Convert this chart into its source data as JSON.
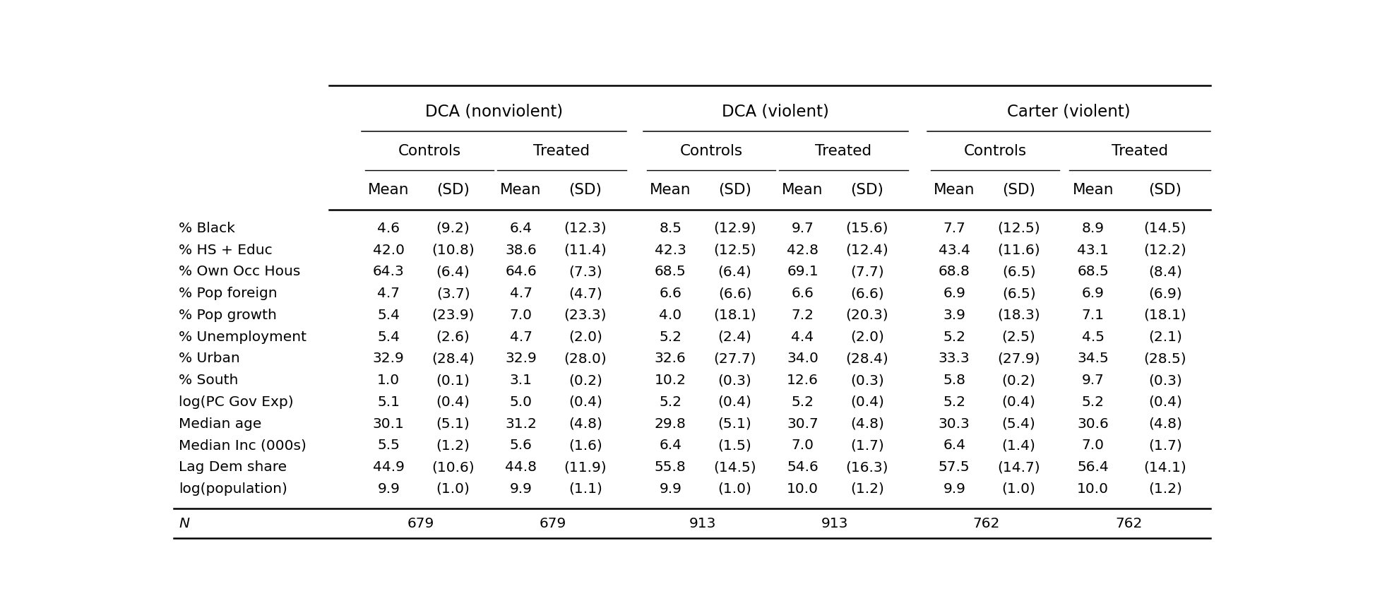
{
  "row_labels": [
    "% Black",
    "% HS + Educ",
    "% Own Occ Hous",
    "% Pop foreign",
    "% Pop growth",
    "% Unemployment",
    "% Urban",
    "% South",
    "log(PC Gov Exp)",
    "Median age",
    "Median Inc (000s)",
    "Lag Dem share",
    "log(population)"
  ],
  "data": [
    [
      "4.6",
      "(9.2)",
      "6.4",
      "(12.3)",
      "8.5",
      "(12.9)",
      "9.7",
      "(15.6)",
      "7.7",
      "(12.5)",
      "8.9",
      "(14.5)"
    ],
    [
      "42.0",
      "(10.8)",
      "38.6",
      "(11.4)",
      "42.3",
      "(12.5)",
      "42.8",
      "(12.4)",
      "43.4",
      "(11.6)",
      "43.1",
      "(12.2)"
    ],
    [
      "64.3",
      "(6.4)",
      "64.6",
      "(7.3)",
      "68.5",
      "(6.4)",
      "69.1",
      "(7.7)",
      "68.8",
      "(6.5)",
      "68.5",
      "(8.4)"
    ],
    [
      "4.7",
      "(3.7)",
      "4.7",
      "(4.7)",
      "6.6",
      "(6.6)",
      "6.6",
      "(6.6)",
      "6.9",
      "(6.5)",
      "6.9",
      "(6.9)"
    ],
    [
      "5.4",
      "(23.9)",
      "7.0",
      "(23.3)",
      "4.0",
      "(18.1)",
      "7.2",
      "(20.3)",
      "3.9",
      "(18.3)",
      "7.1",
      "(18.1)"
    ],
    [
      "5.4",
      "(2.6)",
      "4.7",
      "(2.0)",
      "5.2",
      "(2.4)",
      "4.4",
      "(2.0)",
      "5.2",
      "(2.5)",
      "4.5",
      "(2.1)"
    ],
    [
      "32.9",
      "(28.4)",
      "32.9",
      "(28.0)",
      "32.6",
      "(27.7)",
      "34.0",
      "(28.4)",
      "33.3",
      "(27.9)",
      "34.5",
      "(28.5)"
    ],
    [
      "1.0",
      "(0.1)",
      "3.1",
      "(0.2)",
      "10.2",
      "(0.3)",
      "12.6",
      "(0.3)",
      "5.8",
      "(0.2)",
      "9.7",
      "(0.3)"
    ],
    [
      "5.1",
      "(0.4)",
      "5.0",
      "(0.4)",
      "5.2",
      "(0.4)",
      "5.2",
      "(0.4)",
      "5.2",
      "(0.4)",
      "5.2",
      "(0.4)"
    ],
    [
      "30.1",
      "(5.1)",
      "31.2",
      "(4.8)",
      "29.8",
      "(5.1)",
      "30.7",
      "(4.8)",
      "30.3",
      "(5.4)",
      "30.6",
      "(4.8)"
    ],
    [
      "5.5",
      "(1.2)",
      "5.6",
      "(1.6)",
      "6.4",
      "(1.5)",
      "7.0",
      "(1.7)",
      "6.4",
      "(1.4)",
      "7.0",
      "(1.7)"
    ],
    [
      "44.9",
      "(10.6)",
      "44.8",
      "(11.9)",
      "55.8",
      "(14.5)",
      "54.6",
      "(16.3)",
      "57.5",
      "(14.7)",
      "56.4",
      "(14.1)"
    ],
    [
      "9.9",
      "(1.0)",
      "9.9",
      "(1.1)",
      "9.9",
      "(1.0)",
      "10.0",
      "(1.2)",
      "9.9",
      "(1.0)",
      "10.0",
      "(1.2)"
    ]
  ],
  "n_values": [
    [
      "679",
      "679"
    ],
    [
      "913",
      "913"
    ],
    [
      "762",
      "762"
    ]
  ],
  "group_labels": [
    "DCA (nonviolent)",
    "DCA (violent)",
    "Carter (violent)"
  ],
  "subgroup_labels": [
    "Controls",
    "Treated",
    "Controls",
    "Treated",
    "Controls",
    "Treated"
  ],
  "col_headers": [
    "Mean",
    "(SD)",
    "Mean",
    "(SD)",
    "Mean",
    "(SD)",
    "Mean",
    "(SD)",
    "Mean",
    "(SD)",
    "Mean",
    "(SD)"
  ],
  "bg_color": "#ffffff",
  "text_color": "#000000",
  "font_family": "DejaVu Sans",
  "fontsize_data": 14.5,
  "fontsize_header": 15.5,
  "fontsize_group": 16.5
}
